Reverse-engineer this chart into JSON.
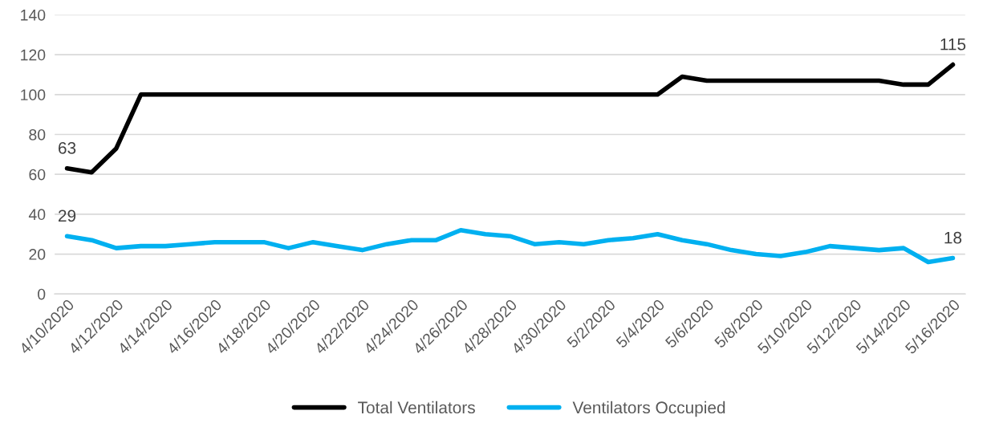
{
  "chart_data": {
    "type": "line",
    "categories": [
      "4/10/2020",
      null,
      "4/12/2020",
      null,
      "4/14/2020",
      null,
      "4/16/2020",
      null,
      "4/18/2020",
      null,
      "4/20/2020",
      null,
      "4/22/2020",
      null,
      "4/24/2020",
      null,
      "4/26/2020",
      null,
      "4/28/2020",
      null,
      "4/30/2020",
      null,
      "5/2/2020",
      null,
      "5/4/2020",
      null,
      "5/6/2020",
      null,
      "5/8/2020",
      null,
      "5/10/2020",
      null,
      "5/12/2020",
      null,
      "5/14/2020",
      null,
      "5/16/2020"
    ],
    "series": [
      {
        "name": "Total Ventilators",
        "color": "#000000",
        "values": [
          63,
          61,
          73,
          100,
          100,
          100,
          100,
          100,
          100,
          100,
          100,
          100,
          100,
          100,
          100,
          100,
          100,
          100,
          100,
          100,
          100,
          100,
          100,
          100,
          100,
          109,
          107,
          107,
          107,
          107,
          107,
          107,
          107,
          107,
          105,
          105,
          115
        ],
        "value_labels": [
          "63",
          null,
          null,
          null,
          null,
          null,
          null,
          null,
          null,
          null,
          null,
          null,
          null,
          null,
          null,
          null,
          null,
          null,
          null,
          null,
          null,
          null,
          null,
          null,
          null,
          null,
          null,
          null,
          null,
          null,
          null,
          null,
          null,
          null,
          null,
          null,
          "115"
        ]
      },
      {
        "name": "Ventilators Occupied",
        "color": "#00b0f0",
        "values": [
          29,
          27,
          23,
          24,
          24,
          25,
          26,
          26,
          26,
          23,
          26,
          24,
          22,
          25,
          27,
          27,
          32,
          30,
          29,
          25,
          26,
          25,
          27,
          28,
          30,
          27,
          25,
          22,
          20,
          19,
          21,
          24,
          23,
          22,
          23,
          16,
          18
        ],
        "value_labels": [
          "29",
          null,
          null,
          null,
          null,
          null,
          null,
          null,
          null,
          null,
          null,
          null,
          null,
          null,
          null,
          null,
          null,
          null,
          null,
          null,
          null,
          null,
          null,
          null,
          null,
          null,
          null,
          null,
          null,
          null,
          null,
          null,
          null,
          null,
          null,
          null,
          "18"
        ]
      }
    ],
    "ylim": [
      0,
      140
    ],
    "yticks": [
      0,
      20,
      40,
      60,
      80,
      100,
      120,
      140
    ],
    "grid": "y",
    "legend": "bottom",
    "marker": "none",
    "line_style": "solid"
  }
}
